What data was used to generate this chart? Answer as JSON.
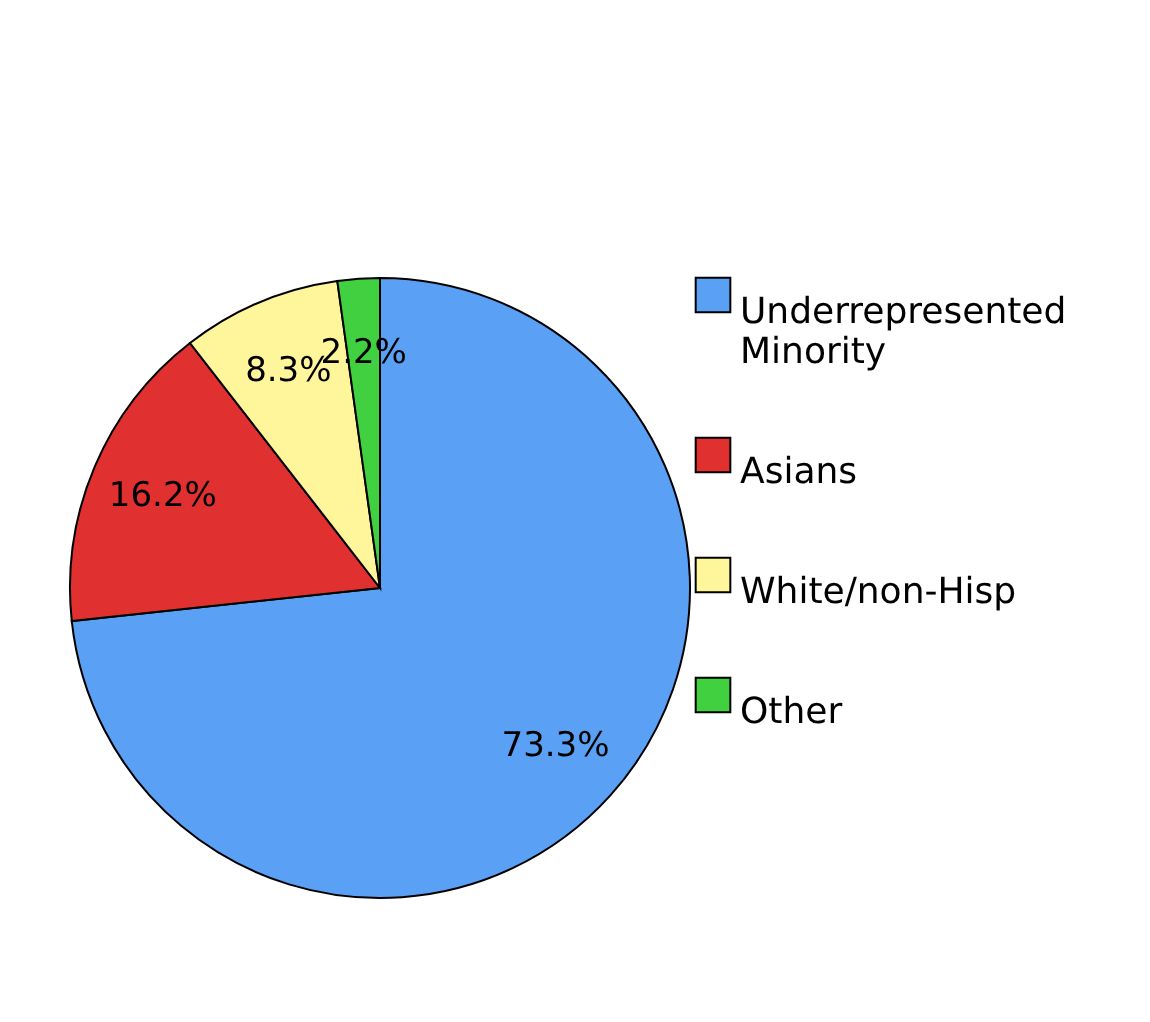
{
  "chart_data": {
    "type": "pie",
    "categories": [
      "Underrepresented Minority",
      "Asians",
      "White/non-Hisp",
      "Other"
    ],
    "values": [
      73.3,
      16.2,
      8.3,
      2.2
    ],
    "colors": [
      "#5aa0f5",
      "#e03030",
      "#fff59a",
      "#40d040"
    ],
    "value_labels": [
      "73.3%",
      "16.2%",
      "8.3%",
      "2.2%"
    ],
    "legend": "right"
  }
}
